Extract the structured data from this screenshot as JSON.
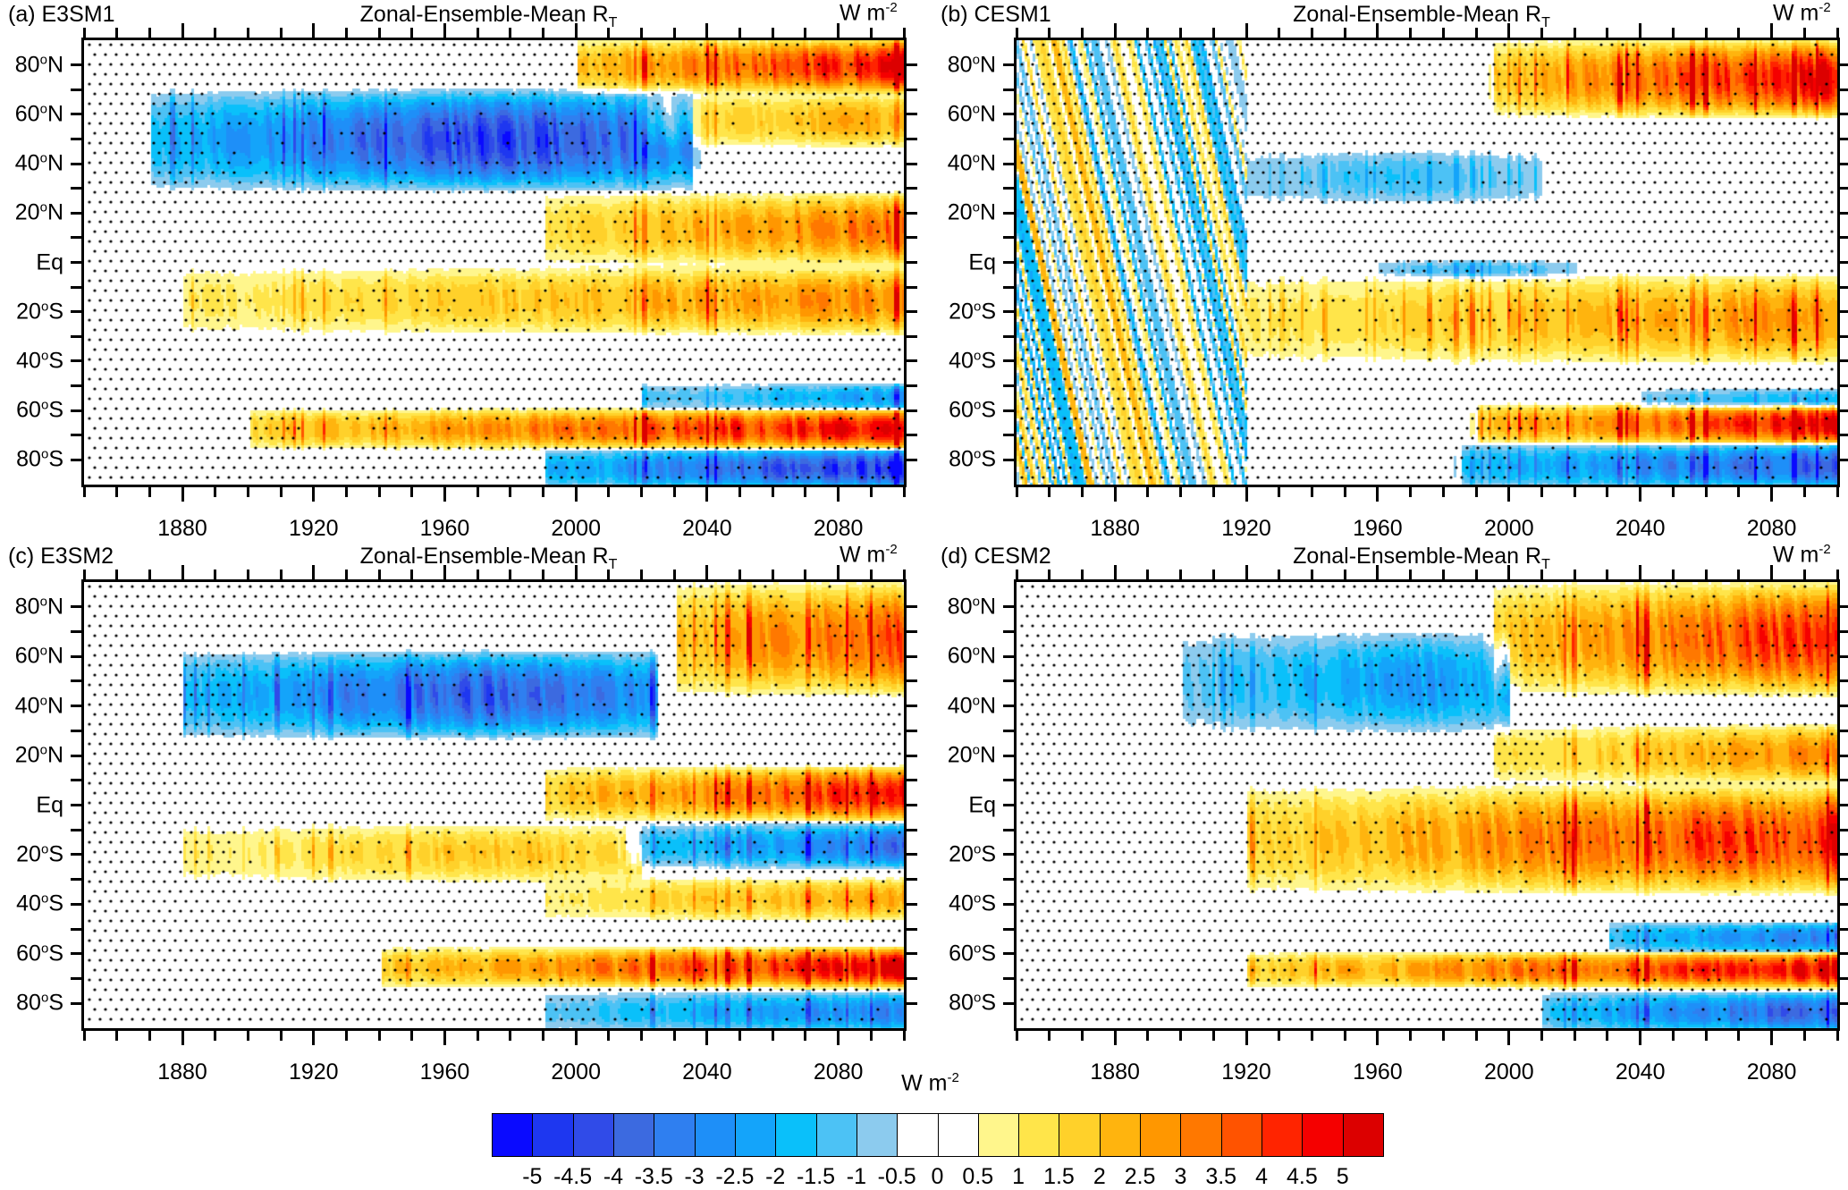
{
  "figure": {
    "colorbar": {
      "title": "W m",
      "title_exp": "-2",
      "levels": [
        -5,
        -4.5,
        -4,
        -3.5,
        -3,
        -2.5,
        -2,
        -1.5,
        -1,
        -0.5,
        0,
        0.5,
        1,
        1.5,
        2,
        2.5,
        3,
        3.5,
        4,
        4.5,
        5
      ],
      "labels": [
        "-5",
        "-4.5",
        "-4",
        "-3.5",
        "-3",
        "-2.5",
        "-2",
        "-1.5",
        "-1",
        "-0.5",
        "0",
        "0.5",
        "1",
        "1.5",
        "2",
        "2.5",
        "3",
        "3.5",
        "4",
        "4.5",
        "5"
      ],
      "colors": [
        "#0a0aff",
        "#1e37f0",
        "#304be8",
        "#3c6ae0",
        "#2f7ff0",
        "#1e8ff8",
        "#14a4fa",
        "#0ac0fa",
        "#4cc2f5",
        "#8ccbee",
        "#ffffff",
        "#ffffff",
        "#fff68c",
        "#ffe54a",
        "#ffd12a",
        "#ffb40e",
        "#ff9700",
        "#ff7800",
        "#ff5300",
        "#ff2400",
        "#f50000",
        "#dc0000"
      ]
    }
  },
  "chart_data": [
    {
      "type": "heatmap",
      "panel": "(a)",
      "model": "E3SM1",
      "title": "Zonal-Ensemble-Mean R",
      "title_sub": "T",
      "units": "W m",
      "units_exp": "-2",
      "xlim": [
        1850,
        2100
      ],
      "ylim": [
        -90,
        90
      ],
      "xticks": [
        1880,
        1920,
        1960,
        2000,
        2040,
        2080
      ],
      "xticklabels": [
        "1880",
        "1920",
        "1960",
        "2000",
        "2040",
        "2080"
      ],
      "yticks": [
        80,
        60,
        40,
        20,
        0,
        -20,
        -40,
        -60,
        -80
      ],
      "yticklabels": [
        "80°N",
        "60°N",
        "40°N",
        "20°N",
        "Eq",
        "20°S",
        "40°S",
        "60°S",
        "80°S"
      ],
      "stippling": "dots where not significant",
      "features": [
        {
          "lat": [
            30,
            70
          ],
          "years": [
            1870,
            2035
          ],
          "peak": -4.5,
          "peak_year": 1975,
          "desc": "NH midlatitude negative band"
        },
        {
          "lat": [
            70,
            90
          ],
          "years": [
            2000,
            2100
          ],
          "peak": 5,
          "peak_year": 2100,
          "desc": "Arctic positive"
        },
        {
          "lat": [
            48,
            68
          ],
          "years": [
            2020,
            2100
          ],
          "peak": 2.5,
          "peak_year": 2100,
          "desc": "NH high-lat positive"
        },
        {
          "lat": [
            0,
            28
          ],
          "years": [
            1990,
            2100
          ],
          "peak": 3.5,
          "peak_year": 2100,
          "desc": "Tropics north positive"
        },
        {
          "lat": [
            -28,
            -2
          ],
          "years": [
            1880,
            2100
          ],
          "peak": 3,
          "peak_year": 2100,
          "desc": "Tropics south positive"
        },
        {
          "lat": [
            -58,
            -50
          ],
          "years": [
            2020,
            2100
          ],
          "peak": -2.5,
          "peak_year": 2100,
          "desc": "SH negative stripe"
        },
        {
          "lat": [
            -74,
            -60
          ],
          "years": [
            1900,
            2100
          ],
          "peak": 5,
          "peak_year": 2100,
          "desc": "Southern Ocean positive"
        },
        {
          "lat": [
            -90,
            -76
          ],
          "years": [
            1990,
            2100
          ],
          "peak": -5,
          "peak_year": 2100,
          "desc": "Antarctic negative"
        }
      ]
    },
    {
      "type": "heatmap",
      "panel": "(b)",
      "model": "CESM1",
      "title": "Zonal-Ensemble-Mean R",
      "title_sub": "T",
      "units": "W m",
      "units_exp": "-2",
      "xlim": [
        1850,
        2100
      ],
      "ylim": [
        -90,
        90
      ],
      "xticks": [
        1880,
        1920,
        1960,
        2000,
        2040,
        2080
      ],
      "xticklabels": [
        "1880",
        "1920",
        "1960",
        "2000",
        "2040",
        "2080"
      ],
      "yticks": [
        80,
        60,
        40,
        20,
        0,
        -20,
        -40,
        -60,
        -80
      ],
      "yticklabels": [
        "80°N",
        "60°N",
        "40°N",
        "20°N",
        "Eq",
        "20°S",
        "40°S",
        "60°S",
        "80°S"
      ],
      "stippling": "dots where not significant",
      "features": [
        {
          "lat": [
            -90,
            90
          ],
          "years": [
            1850,
            1920
          ],
          "peak": 1.5,
          "peak_year": 1900,
          "desc": "Noisy alternating signal"
        },
        {
          "lat": [
            60,
            90
          ],
          "years": [
            1995,
            2100
          ],
          "peak": 5,
          "peak_year": 2100,
          "desc": "Arctic positive"
        },
        {
          "lat": [
            25,
            45
          ],
          "years": [
            1920,
            2010
          ],
          "peak": -1.5,
          "peak_year": 1965,
          "desc": "NH midlatitude negative"
        },
        {
          "lat": [
            -5,
            0
          ],
          "years": [
            1960,
            2020
          ],
          "peak": -1.5,
          "peak_year": 1990,
          "desc": "Equatorial negative strip"
        },
        {
          "lat": [
            -40,
            -5
          ],
          "years": [
            1920,
            2100
          ],
          "peak": 3,
          "peak_year": 2100,
          "desc": "SH tropics positive"
        },
        {
          "lat": [
            -58,
            -52
          ],
          "years": [
            2040,
            2100
          ],
          "peak": -2,
          "peak_year": 2100,
          "desc": "SH negative stripe"
        },
        {
          "lat": [
            -72,
            -58
          ],
          "years": [
            1990,
            2100
          ],
          "peak": 5,
          "peak_year": 2100,
          "desc": "Southern Ocean positive"
        },
        {
          "lat": [
            -90,
            -74
          ],
          "years": [
            1985,
            2100
          ],
          "peak": -4,
          "peak_year": 2100,
          "desc": "Antarctic negative"
        }
      ]
    },
    {
      "type": "heatmap",
      "panel": "(c)",
      "model": "E3SM2",
      "title": "Zonal-Ensemble-Mean R",
      "title_sub": "T",
      "units": "W m",
      "units_exp": "-2",
      "xlim": [
        1850,
        2100
      ],
      "ylim": [
        -90,
        90
      ],
      "xticks": [
        1880,
        1920,
        1960,
        2000,
        2040,
        2080
      ],
      "xticklabels": [
        "1880",
        "1920",
        "1960",
        "2000",
        "2040",
        "2080"
      ],
      "yticks": [
        80,
        60,
        40,
        20,
        0,
        -20,
        -40,
        -60,
        -80
      ],
      "yticklabels": [
        "80°N",
        "60°N",
        "40°N",
        "20°N",
        "Eq",
        "20°S",
        "40°S",
        "60°S",
        "80°S"
      ],
      "stippling": "dots where not significant",
      "features": [
        {
          "lat": [
            28,
            62
          ],
          "years": [
            1880,
            2025
          ],
          "peak": -4,
          "peak_year": 1970,
          "desc": "NH midlatitude negative band"
        },
        {
          "lat": [
            45,
            90
          ],
          "years": [
            2030,
            2100
          ],
          "peak": 4,
          "peak_year": 2100,
          "desc": "NH high-lat positive"
        },
        {
          "lat": [
            -5,
            15
          ],
          "years": [
            1990,
            2100
          ],
          "peak": 4.5,
          "peak_year": 2100,
          "desc": "Equatorial positive"
        },
        {
          "lat": [
            -24,
            -8
          ],
          "years": [
            2015,
            2100
          ],
          "peak": -3.5,
          "peak_year": 2100,
          "desc": "SH tropics negative"
        },
        {
          "lat": [
            -30,
            -8
          ],
          "years": [
            1880,
            2020
          ],
          "peak": 2,
          "peak_year": 1980,
          "desc": "SH subtropics positive"
        },
        {
          "lat": [
            -45,
            -30
          ],
          "years": [
            1990,
            2100
          ],
          "peak": 2.5,
          "peak_year": 2100,
          "desc": "SH positive"
        },
        {
          "lat": [
            -72,
            -58
          ],
          "years": [
            1940,
            2100
          ],
          "peak": 5,
          "peak_year": 2100,
          "desc": "Southern Ocean positive"
        },
        {
          "lat": [
            -90,
            -76
          ],
          "years": [
            1990,
            2100
          ],
          "peak": -3,
          "peak_year": 2100,
          "desc": "Antarctic negative"
        }
      ]
    },
    {
      "type": "heatmap",
      "panel": "(d)",
      "model": "CESM2",
      "title": "Zonal-Ensemble-Mean R",
      "title_sub": "T",
      "units": "W m",
      "units_exp": "-2",
      "xlim": [
        1850,
        2100
      ],
      "ylim": [
        -90,
        90
      ],
      "xticks": [
        1880,
        1920,
        1960,
        2000,
        2040,
        2080
      ],
      "xticklabels": [
        "1880",
        "1920",
        "1960",
        "2000",
        "2040",
        "2080"
      ],
      "yticks": [
        80,
        60,
        40,
        20,
        0,
        -20,
        -40,
        -60,
        -80
      ],
      "yticklabels": [
        "80°N",
        "60°N",
        "40°N",
        "20°N",
        "Eq",
        "20°S",
        "40°S",
        "60°S",
        "80°S"
      ],
      "stippling": "dots where not significant",
      "features": [
        {
          "lat": [
            30,
            70
          ],
          "years": [
            1900,
            2000
          ],
          "peak": -2.5,
          "peak_year": 1975,
          "desc": "NH midlatitude negative"
        },
        {
          "lat": [
            45,
            90
          ],
          "years": [
            1995,
            2100
          ],
          "peak": 4.5,
          "peak_year": 2100,
          "desc": "NH high-lat positive"
        },
        {
          "lat": [
            10,
            32
          ],
          "years": [
            1995,
            2100
          ],
          "peak": 3,
          "peak_year": 2100,
          "desc": "NH subtropics positive"
        },
        {
          "lat": [
            -35,
            8
          ],
          "years": [
            1920,
            2100
          ],
          "peak": 4.5,
          "peak_year": 2100,
          "desc": "Tropics positive"
        },
        {
          "lat": [
            -58,
            -48
          ],
          "years": [
            2030,
            2100
          ],
          "peak": -3.5,
          "peak_year": 2100,
          "desc": "SH negative stripe"
        },
        {
          "lat": [
            -72,
            -60
          ],
          "years": [
            1920,
            2100
          ],
          "peak": 5,
          "peak_year": 2100,
          "desc": "Southern Ocean positive"
        },
        {
          "lat": [
            -90,
            -76
          ],
          "years": [
            2010,
            2100
          ],
          "peak": -4,
          "peak_year": 2100,
          "desc": "Antarctic negative"
        }
      ]
    }
  ]
}
